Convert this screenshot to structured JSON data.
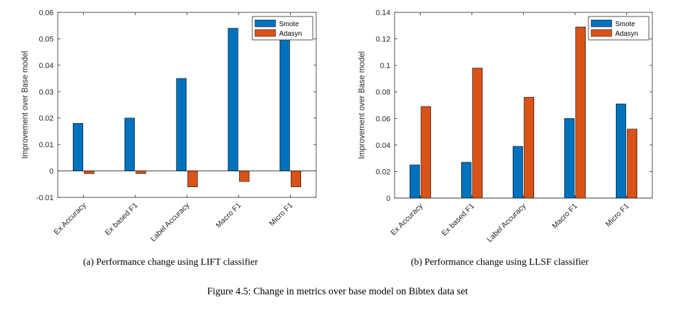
{
  "colors": {
    "smote": "#0072BD",
    "adasyn": "#D95319",
    "axis": "#262626"
  },
  "figure_caption": "Figure 4.5: Change in metrics over base model on Bibtex data set",
  "chart_data": [
    {
      "type": "bar",
      "caption": "(a) Performance change using LIFT classifier",
      "ylabel": "Improvement over Base model",
      "xlabel": "",
      "ylim": [
        -0.01,
        0.06
      ],
      "yticks": [
        -0.01,
        0,
        0.01,
        0.02,
        0.03,
        0.04,
        0.05,
        0.06
      ],
      "ytick_labels": [
        "-0.01",
        "0",
        "0.01",
        "0.02",
        "0.03",
        "0.04",
        "0.05",
        "0.06"
      ],
      "categories": [
        "Ex Accuracy",
        "Ex based F1",
        "Label Accuracy",
        "Macro F1",
        "Micro F1"
      ],
      "legend_position": "top-right",
      "grid": false,
      "series": [
        {
          "name": "Smote",
          "color": "#0072BD",
          "values": [
            0.018,
            0.02,
            0.035,
            0.054,
            0.05
          ]
        },
        {
          "name": "Adasyn",
          "color": "#D95319",
          "values": [
            -0.001,
            -0.001,
            -0.006,
            -0.004,
            -0.006
          ]
        }
      ]
    },
    {
      "type": "bar",
      "caption": "(b) Performance change using LLSF classifier",
      "ylabel": "Improvement over Base model",
      "xlabel": "",
      "ylim": [
        0,
        0.14
      ],
      "yticks": [
        0,
        0.02,
        0.04,
        0.06,
        0.08,
        0.1,
        0.12,
        0.14
      ],
      "ytick_labels": [
        "0",
        "0.02",
        "0.04",
        "0.06",
        "0.08",
        "0.1",
        "0.12",
        "0.14"
      ],
      "categories": [
        "Ex Accuracy",
        "Ex based F1",
        "Label Accuracy",
        "Macro F1",
        "Micro F1"
      ],
      "legend_position": "top-right",
      "grid": false,
      "series": [
        {
          "name": "Smote",
          "color": "#0072BD",
          "values": [
            0.025,
            0.027,
            0.039,
            0.06,
            0.071
          ]
        },
        {
          "name": "Adasyn",
          "color": "#D95319",
          "values": [
            0.069,
            0.098,
            0.076,
            0.129,
            0.052
          ]
        }
      ]
    }
  ]
}
